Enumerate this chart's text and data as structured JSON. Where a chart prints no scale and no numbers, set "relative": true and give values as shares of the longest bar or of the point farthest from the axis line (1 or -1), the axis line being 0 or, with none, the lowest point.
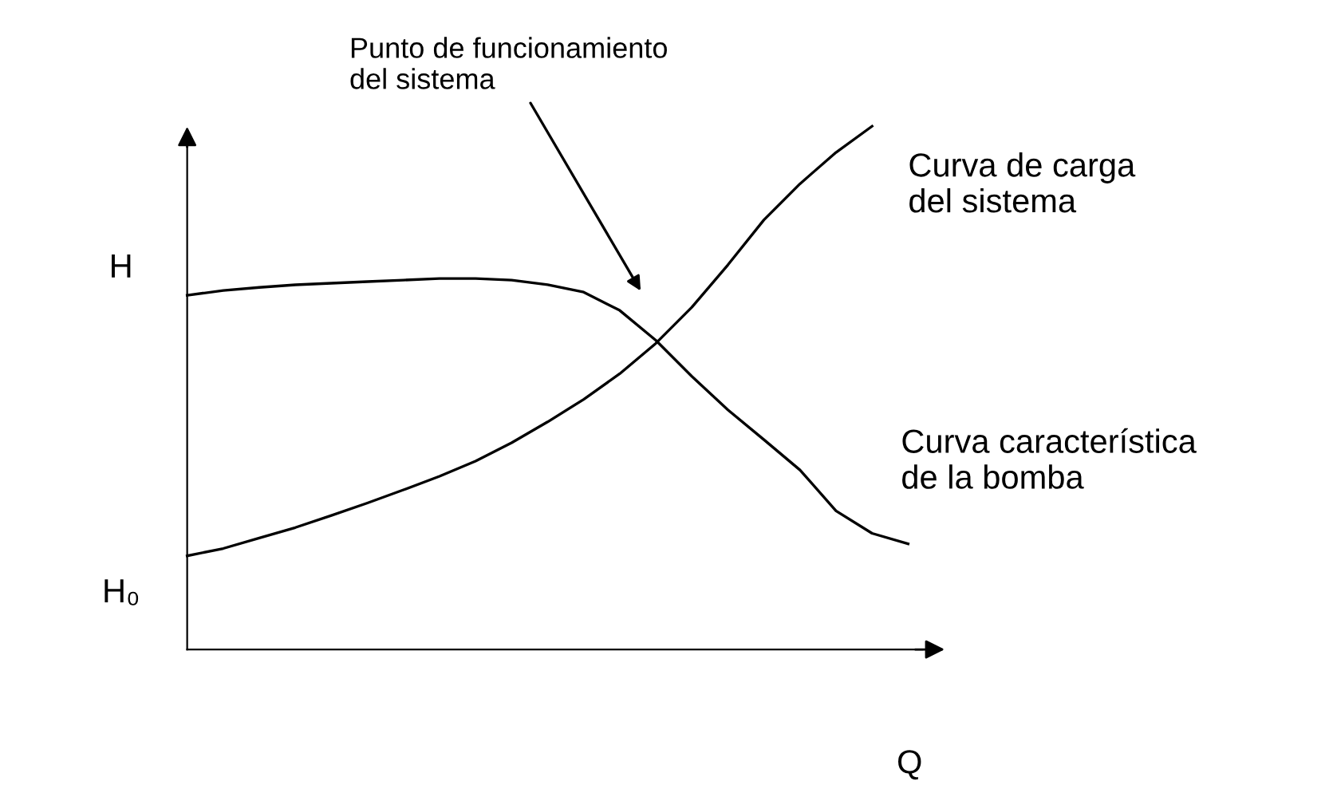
{
  "chart_data": {
    "type": "line",
    "relative": true,
    "xlabel": "Q",
    "ylabel": "H",
    "categories": [
      null,
      null,
      null,
      null,
      null,
      null,
      null,
      null,
      null,
      null,
      null,
      null,
      null,
      null,
      null,
      null,
      null,
      null,
      null,
      null,
      null
    ],
    "series": [
      {
        "name": "Curva de carga\ndel sistema",
        "color": "#000000",
        "values": [
          0.179,
          0.193,
          0.213,
          0.233,
          0.256,
          0.28,
          0.305,
          0.331,
          0.36,
          0.395,
          0.435,
          0.478,
          0.527,
          0.585,
          0.654,
          0.735,
          0.821,
          0.89,
          0.95,
          1.0,
          null
        ]
      },
      {
        "name": "Curva característica\nde la bomba",
        "color": "#000000",
        "values": [
          0.677,
          0.686,
          0.692,
          0.697,
          0.7,
          0.703,
          0.706,
          0.709,
          0.709,
          0.706,
          0.697,
          0.683,
          0.648,
          0.591,
          0.522,
          0.458,
          0.401,
          0.343,
          0.265,
          0.222,
          0.202
        ]
      }
    ],
    "annotations": [
      "Punto de funcionamiento\ndel sistema",
      "H₀"
    ],
    "legend": false,
    "marker": "none",
    "line_style": "solid"
  }
}
